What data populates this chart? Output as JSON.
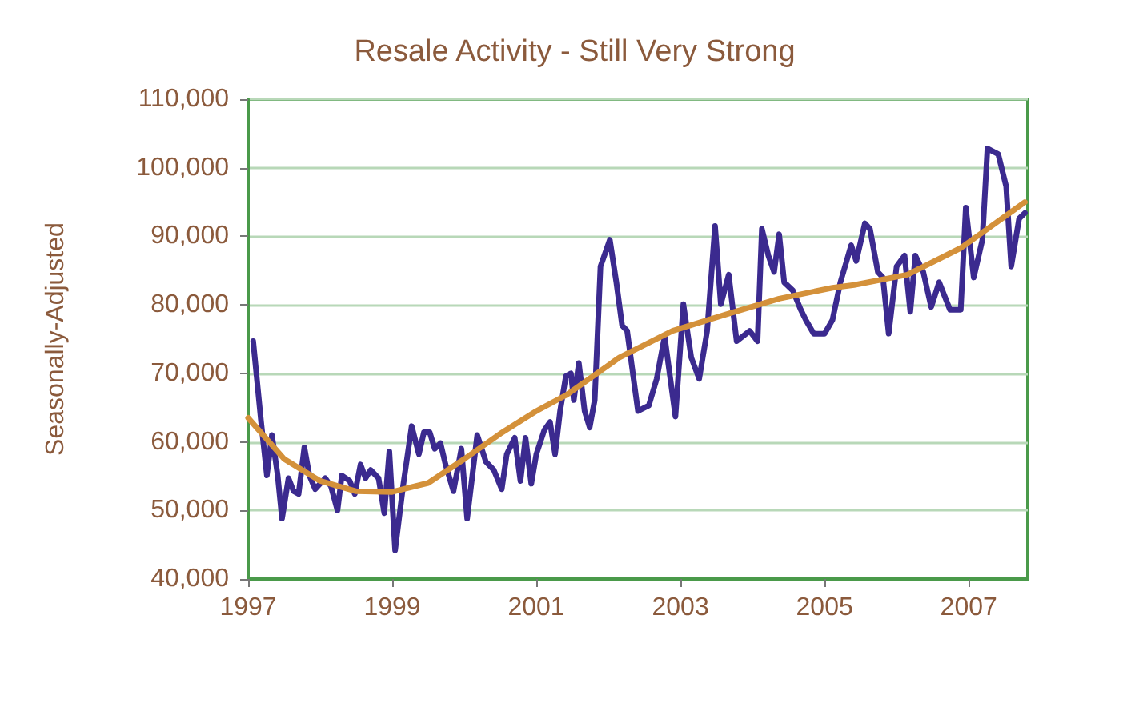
{
  "chart_data": {
    "type": "line",
    "title": "Resale Activity - Still Very Strong",
    "ylabel": "Seasonally-Adjusted",
    "xlim": [
      1997,
      2007.82
    ],
    "xticks": [
      1997,
      1999,
      2001,
      2003,
      2005,
      2007
    ],
    "ylim": [
      40000,
      110000
    ],
    "yticks": [
      {
        "value": 40000,
        "label": "40,000"
      },
      {
        "value": 50000,
        "label": "50,000"
      },
      {
        "value": 60000,
        "label": "60,000"
      },
      {
        "value": 70000,
        "label": "70,000"
      },
      {
        "value": 80000,
        "label": "80,000"
      },
      {
        "value": 90000,
        "label": "90,000"
      },
      {
        "value": 100000,
        "label": "100,000"
      },
      {
        "value": 110000,
        "label": "110,000"
      }
    ],
    "grid": "y",
    "marker": "none",
    "line_style": "solid",
    "series": [
      {
        "color": "#3b2a8f",
        "x": [
          1997.07,
          1997.18,
          1997.26,
          1997.33,
          1997.41,
          1997.47,
          1997.56,
          1997.63,
          1997.7,
          1997.78,
          1997.85,
          1997.93,
          1998.07,
          1998.15,
          1998.24,
          1998.3,
          1998.41,
          1998.48,
          1998.56,
          1998.63,
          1998.7,
          1998.81,
          1998.89,
          1998.96,
          1999.04,
          1999.15,
          1999.27,
          1999.37,
          1999.44,
          1999.52,
          1999.59,
          1999.67,
          1999.74,
          1999.85,
          1999.96,
          2000.04,
          2000.18,
          2000.3,
          2000.41,
          2000.52,
          2000.59,
          2000.7,
          2000.78,
          2000.85,
          2000.93,
          2001.0,
          2001.11,
          2001.19,
          2001.26,
          2001.33,
          2001.41,
          2001.48,
          2001.52,
          2001.59,
          2001.67,
          2001.74,
          2001.81,
          2001.89,
          2002.02,
          2002.11,
          2002.19,
          2002.26,
          2002.41,
          2002.56,
          2002.67,
          2002.78,
          2002.93,
          2003.04,
          2003.15,
          2003.26,
          2003.37,
          2003.48,
          2003.56,
          2003.67,
          2003.78,
          2003.96,
          2004.07,
          2004.13,
          2004.22,
          2004.3,
          2004.37,
          2004.44,
          2004.56,
          2004.67,
          2004.74,
          2004.85,
          2005.0,
          2005.11,
          2005.22,
          2005.37,
          2005.44,
          2005.56,
          2005.63,
          2005.74,
          2005.81,
          2005.89,
          2006.0,
          2006.11,
          2006.19,
          2006.26,
          2006.37,
          2006.48,
          2006.59,
          2006.74,
          2006.89,
          2006.96,
          2007.07,
          2007.19,
          2007.26,
          2007.41,
          2007.52,
          2007.59,
          2007.7,
          2007.78
        ],
        "values": [
          74700,
          62900,
          55100,
          61000,
          55100,
          48800,
          54700,
          52800,
          52400,
          59200,
          55100,
          53100,
          54700,
          53500,
          50000,
          55100,
          54300,
          52400,
          56700,
          54700,
          55900,
          54700,
          49600,
          58600,
          44200,
          53500,
          62300,
          58200,
          61400,
          61400,
          59000,
          59800,
          56700,
          52800,
          59000,
          48800,
          61000,
          57100,
          55900,
          53100,
          58200,
          60600,
          54300,
          60600,
          53900,
          58200,
          61700,
          62900,
          58200,
          64500,
          69600,
          70000,
          66100,
          71500,
          64500,
          62100,
          66100,
          85600,
          89500,
          83300,
          77000,
          76200,
          64500,
          65300,
          69200,
          75400,
          63700,
          80100,
          72300,
          69200,
          76200,
          91500,
          80100,
          84400,
          74700,
          76200,
          74700,
          91100,
          87200,
          84800,
          90300,
          83300,
          82100,
          79300,
          77800,
          75800,
          75800,
          77800,
          83300,
          88700,
          86400,
          91900,
          91100,
          84800,
          84000,
          75800,
          85600,
          87200,
          79000,
          87200,
          84800,
          79700,
          83300,
          79300,
          79300,
          94200,
          84000,
          89500,
          102800,
          102000,
          97300,
          85600,
          92600,
          93400
        ]
      },
      {
        "color": "#d4913a",
        "x": [
          1997.0,
          1997.5,
          1998.0,
          1998.5,
          1999.0,
          1999.5,
          2000.0,
          2000.5,
          2001.0,
          2001.41,
          2002.15,
          2002.89,
          2003.63,
          2004.37,
          2005.11,
          2005.41,
          2006.15,
          2006.89,
          2007.78
        ],
        "values": [
          63500,
          57500,
          54300,
          52800,
          52700,
          54000,
          57500,
          61200,
          64500,
          66800,
          72300,
          76200,
          78600,
          80900,
          82500,
          82900,
          84400,
          88300,
          95000
        ]
      }
    ]
  }
}
